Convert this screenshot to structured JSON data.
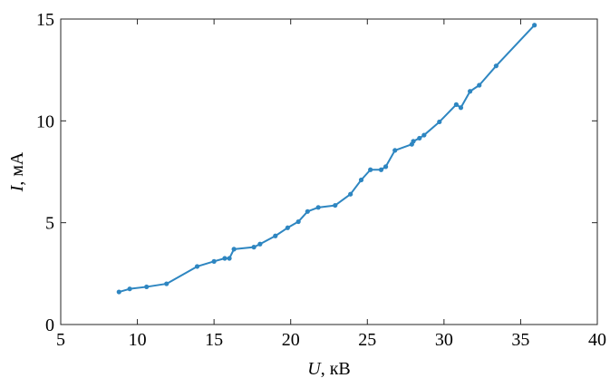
{
  "chart_data": {
    "type": "line",
    "title": "",
    "xlabel": {
      "var": "U",
      "rest": ", кВ"
    },
    "ylabel": {
      "var": "I",
      "rest": ", мА"
    },
    "xlim": [
      5,
      40
    ],
    "ylim": [
      0,
      15
    ],
    "xticks": [
      "5",
      "10",
      "15",
      "20",
      "25",
      "30",
      "35",
      "40"
    ],
    "yticks": [
      "0",
      "5",
      "10",
      "15"
    ],
    "grid": false,
    "legend": "none",
    "series_color": "#2e86c1",
    "series": [
      {
        "x": [
          8.8,
          9.5,
          10.6,
          11.9,
          13.9,
          15.0,
          15.7,
          16.0,
          16.3,
          17.6,
          18.0,
          19.0,
          19.8,
          20.5,
          21.1,
          21.8,
          22.9,
          23.9,
          24.6,
          25.2,
          25.9,
          26.2,
          26.8,
          27.9,
          28.0,
          28.4,
          28.7,
          29.7,
          30.8,
          31.1,
          31.7,
          32.3,
          33.4,
          35.9
        ],
        "y": [
          1.6,
          1.75,
          1.85,
          2.0,
          2.85,
          3.1,
          3.25,
          3.25,
          3.7,
          3.8,
          3.95,
          4.35,
          4.75,
          5.05,
          5.55,
          5.75,
          5.85,
          6.4,
          7.1,
          7.6,
          7.6,
          7.75,
          8.55,
          8.85,
          9.0,
          9.15,
          9.3,
          9.95,
          10.8,
          10.65,
          11.45,
          11.75,
          12.7,
          14.7
        ]
      }
    ]
  }
}
